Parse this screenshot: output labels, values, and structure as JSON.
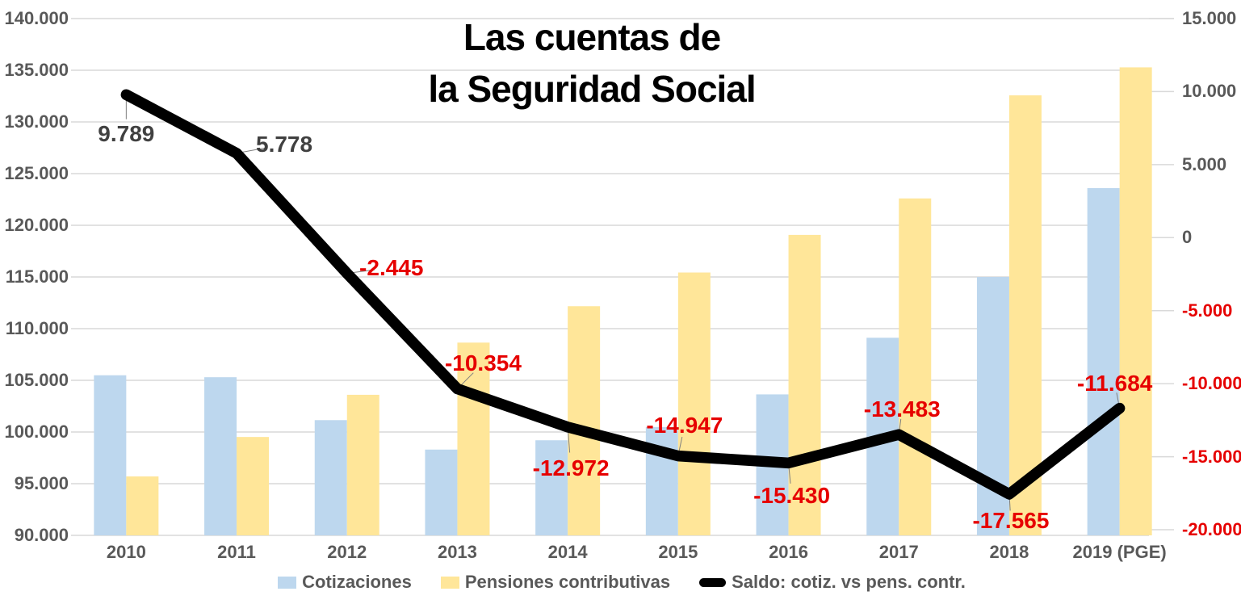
{
  "title": {
    "line1": "Las cuentas de",
    "line2": "la Seguridad Social"
  },
  "colors": {
    "cotizaciones_bar": "#BDD7EE",
    "pensiones_bar": "#FFE699",
    "saldo_line": "#000000",
    "positive_label": "#404040",
    "negative_label": "#E60000",
    "axis_text": "#595959",
    "gridline": "#D9D9D9",
    "background": "#FFFFFF"
  },
  "left_axis": {
    "ticks": [
      {
        "label": "140.000",
        "value": 140000
      },
      {
        "label": "135.000",
        "value": 135000
      },
      {
        "label": "130.000",
        "value": 130000
      },
      {
        "label": "125.000",
        "value": 125000
      },
      {
        "label": "120.000",
        "value": 120000
      },
      {
        "label": "115.000",
        "value": 115000
      },
      {
        "label": "110.000",
        "value": 110000
      },
      {
        "label": "105.000",
        "value": 105000
      },
      {
        "label": "100.000",
        "value": 100000
      },
      {
        "label": "95.000",
        "value": 95000
      },
      {
        "label": "90.000",
        "value": 90000
      }
    ]
  },
  "right_axis": {
    "ticks": [
      {
        "label": "15.000",
        "value": 15000,
        "red": false
      },
      {
        "label": "10.000",
        "value": 10000,
        "red": false
      },
      {
        "label": "5.000",
        "value": 5000,
        "red": false
      },
      {
        "label": "0",
        "value": 0,
        "red": false
      },
      {
        "label": "-5.000",
        "value": -5000,
        "red": true
      },
      {
        "label": "-10.000",
        "value": -10000,
        "red": true
      },
      {
        "label": "-15.000",
        "value": -15000,
        "red": true
      },
      {
        "label": "-20.000",
        "value": -20000,
        "red": true
      }
    ]
  },
  "legend": {
    "items": [
      {
        "label": "Cotizaciones"
      },
      {
        "label": "Pensiones contributivas"
      },
      {
        "label": "Saldo: cotiz. vs pens. contr."
      }
    ]
  },
  "chart_data": {
    "type": "combo",
    "title": "Las cuentas de la Seguridad Social",
    "categories": [
      "2010",
      "2011",
      "2012",
      "2013",
      "2014",
      "2015",
      "2016",
      "2017",
      "2018",
      "2019 (PGE)"
    ],
    "left_axis_range": [
      90000,
      140000
    ],
    "right_axis_range": [
      -20000,
      15000
    ],
    "grid": true,
    "legend_position": "bottom",
    "series": [
      {
        "name": "Cotizaciones",
        "type": "bar",
        "axis": "left",
        "color": "#BDD7EE",
        "values": [
          105490,
          105300,
          101150,
          98300,
          99200,
          100480,
          103640,
          109120,
          115000,
          123600
        ]
      },
      {
        "name": "Pensiones contributivas",
        "type": "bar",
        "axis": "left",
        "color": "#FFE699",
        "values": [
          95700,
          99520,
          103600,
          108650,
          112170,
          115430,
          119070,
          122600,
          132570,
          135280
        ]
      },
      {
        "name": "Saldo: cotiz. vs pens. contr.",
        "type": "line",
        "axis": "right",
        "color": "#000000",
        "values": [
          9789,
          5778,
          -2445,
          -10354,
          -12972,
          -14947,
          -15430,
          -13483,
          -17565,
          -11684
        ],
        "point_labels": [
          "9.789",
          "5.778",
          "-2.445",
          "-10.354",
          "-12.972",
          "-14.947",
          "-15.430",
          "-13.483",
          "-17.565",
          "-11.684"
        ]
      }
    ]
  }
}
